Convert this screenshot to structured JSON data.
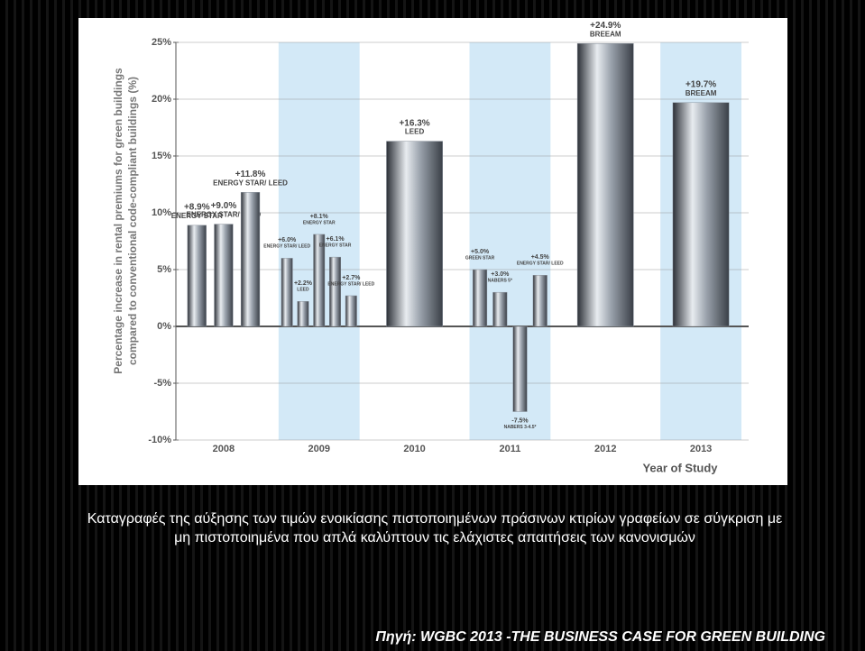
{
  "chart_data": {
    "type": "bar",
    "ylabel_lines": [
      "Percentage increase in rental premiums for green buildings",
      "compared to conventional code-compliant buildings (%)"
    ],
    "xlabel": "Year of Study",
    "categories": [
      "2008",
      "2009",
      "2010",
      "2011",
      "2012",
      "2013"
    ],
    "groups": [
      {
        "values": [
          8.9,
          9.0,
          11.8
        ],
        "value_labels": [
          "+8.9%",
          "+9.0%",
          "+11.8%"
        ],
        "notes": [
          "ENERGY STAR",
          "ENERGY STAR/ LEED",
          "ENERGY STAR/ LEED"
        ]
      },
      {
        "values": [
          6.0,
          2.2,
          8.1,
          6.1,
          2.7
        ],
        "value_labels": [
          "+6.0%",
          "+2.2%",
          "+8.1%",
          "+6.1%",
          "+2.7%"
        ],
        "notes": [
          "ENERGY STAR/ LEED",
          "LEED",
          "ENERGY STAR",
          "ENERGY STAR",
          "ENERGY STAR/ LEED"
        ]
      },
      {
        "values": [
          16.3
        ],
        "value_labels": [
          "+16.3%"
        ],
        "notes": [
          "LEED"
        ]
      },
      {
        "values": [
          5.0,
          3.0,
          -7.5,
          4.5
        ],
        "value_labels": [
          "+5.0%",
          "+3.0%",
          "-7.5%",
          "+4.5%"
        ],
        "notes": [
          "GREEN STAR",
          "NABERS 5*",
          "NABERS 3-4.5*",
          "ENERGY STAR/ LEED"
        ]
      },
      {
        "values": [
          24.9
        ],
        "value_labels": [
          "+24.9%"
        ],
        "notes": [
          "BREEAM"
        ]
      },
      {
        "values": [
          19.7
        ],
        "value_labels": [
          "+19.7%"
        ],
        "notes": [
          "BREEAM"
        ]
      }
    ],
    "color": "#8a929c",
    "shade_color": "#d3e9f7",
    "ylim": [
      -10,
      25
    ],
    "yticks": [
      {
        "value": -10,
        "label": "-10%"
      },
      {
        "value": -5,
        "label": "-5%"
      },
      {
        "value": 0,
        "label": "0%"
      },
      {
        "value": 5,
        "label": "5%"
      },
      {
        "value": 10,
        "label": "10%"
      },
      {
        "value": 15,
        "label": "15%"
      },
      {
        "value": 20,
        "label": "20%"
      },
      {
        "value": 25,
        "label": "25%"
      }
    ],
    "grid": true
  },
  "caption": "Καταγραφές της αύξησης των τιμών ενοικίασης πιστοποιημένων πράσινων κτιρίων γραφείων σε σύγκριση με μη πιστοποιημένα που απλά καλύπτουν τις ελάχιστες απαιτήσεις των κανονισμών",
  "source": "Πηγή: WGBC 2013 -THE BUSINESS CASE FOR GREEN BUILDING"
}
